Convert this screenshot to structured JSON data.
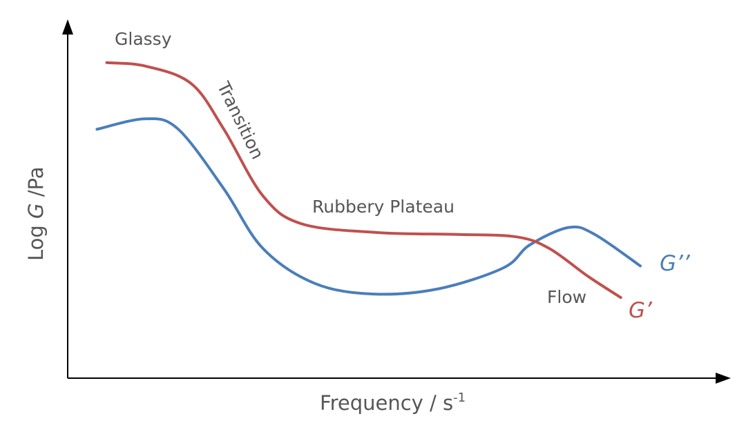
{
  "chart_data": {
    "type": "line",
    "title": "",
    "xlabel": {
      "prefix": "Frequency / s",
      "superscript": "-1"
    },
    "ylabel": {
      "prefix": "Log ",
      "italic": "G",
      "suffix": " /Pa"
    },
    "xlim": [
      0,
      100
    ],
    "ylim": [
      0,
      100
    ],
    "grid": false,
    "legend": "none (series labeled directly at line ends)",
    "x_ticks": [],
    "y_ticks": [],
    "annotations": {
      "glassy": "Glassy",
      "transition": "Transition",
      "rubbery_plateau": "Rubbery Plateau",
      "flow": "Flow"
    },
    "series": [
      {
        "name": "G’",
        "color": "#C0504D",
        "points": [
          [
            6,
            90
          ],
          [
            12,
            89
          ],
          [
            19,
            84
          ],
          [
            24,
            71
          ],
          [
            30,
            52
          ],
          [
            36,
            44
          ],
          [
            48,
            41.5
          ],
          [
            60,
            41
          ],
          [
            69,
            40.3
          ],
          [
            74,
            37
          ],
          [
            80,
            29
          ],
          [
            85,
            23
          ]
        ]
      },
      {
        "name": "G’’",
        "color": "#4A7EBB",
        "points": [
          [
            4.5,
            71
          ],
          [
            12,
            74
          ],
          [
            17,
            71
          ],
          [
            24,
            54
          ],
          [
            30,
            37
          ],
          [
            38,
            27
          ],
          [
            47,
            24
          ],
          [
            57,
            25.5
          ],
          [
            67,
            31.5
          ],
          [
            71,
            38
          ],
          [
            77,
            43
          ],
          [
            81,
            41
          ],
          [
            88,
            32
          ]
        ]
      }
    ]
  },
  "labels": {
    "glassy": "Glassy",
    "transition": "Transition",
    "rubbery_plateau": "Rubbery Plateau",
    "flow": "Flow",
    "g_prime": "G’",
    "g_double_prime": "G’’"
  }
}
